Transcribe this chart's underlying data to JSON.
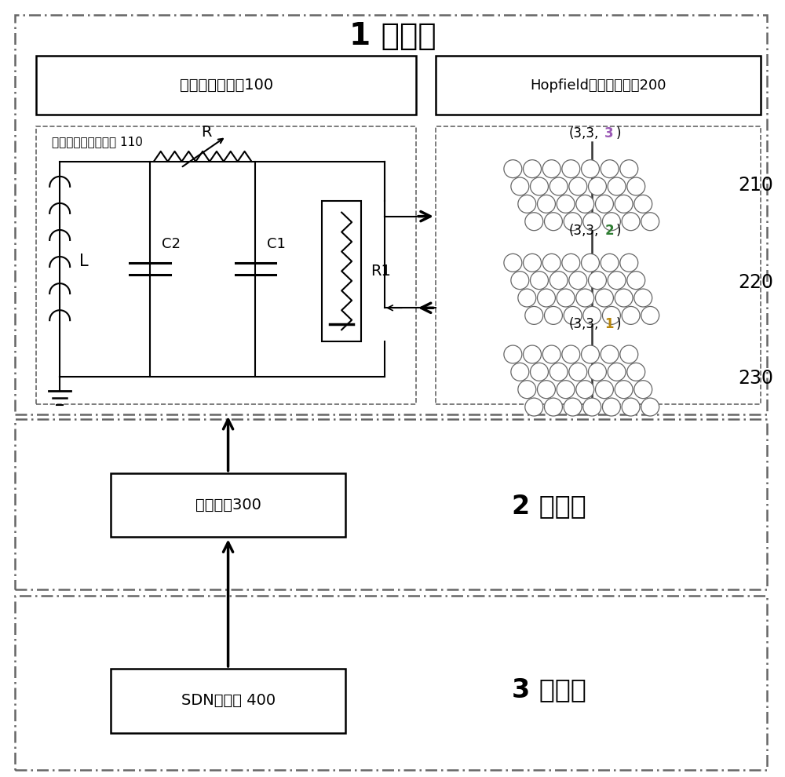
{
  "title": "1 物理层",
  "layer2_title": "2 网络层",
  "layer3_title": "3 控制层",
  "chaos_gen_label": "混沌序列生成器100",
  "hopfield_label": "Hopfield神经网络装置200",
  "chua_circuit_label": "蔡氏忆阻器混沌电路 110",
  "gateway_label": "物联网关300",
  "sdn_label": "SDN控制器 400",
  "layer210_label": "210",
  "layer220_label": "220",
  "layer230_label": "230",
  "coord_top_prefix": "(3,3,",
  "coord_top_num": "3",
  "coord_top_suffix": ")",
  "coord_mid_prefix": "(3,3,",
  "coord_mid_num": "2",
  "coord_mid_suffix": ")",
  "coord_bot_prefix": "(3,3,",
  "coord_bot_num": "1",
  "coord_bot_suffix": ")",
  "coord_top_color": "#9b59b6",
  "coord_mid_color": "#2e7d32",
  "coord_bot_color": "#b8860b",
  "bg_color": "#ffffff",
  "line_color": "#000000",
  "dashed_color": "#666666",
  "font_color": "#000000",
  "circle_edge_color": "#666666"
}
